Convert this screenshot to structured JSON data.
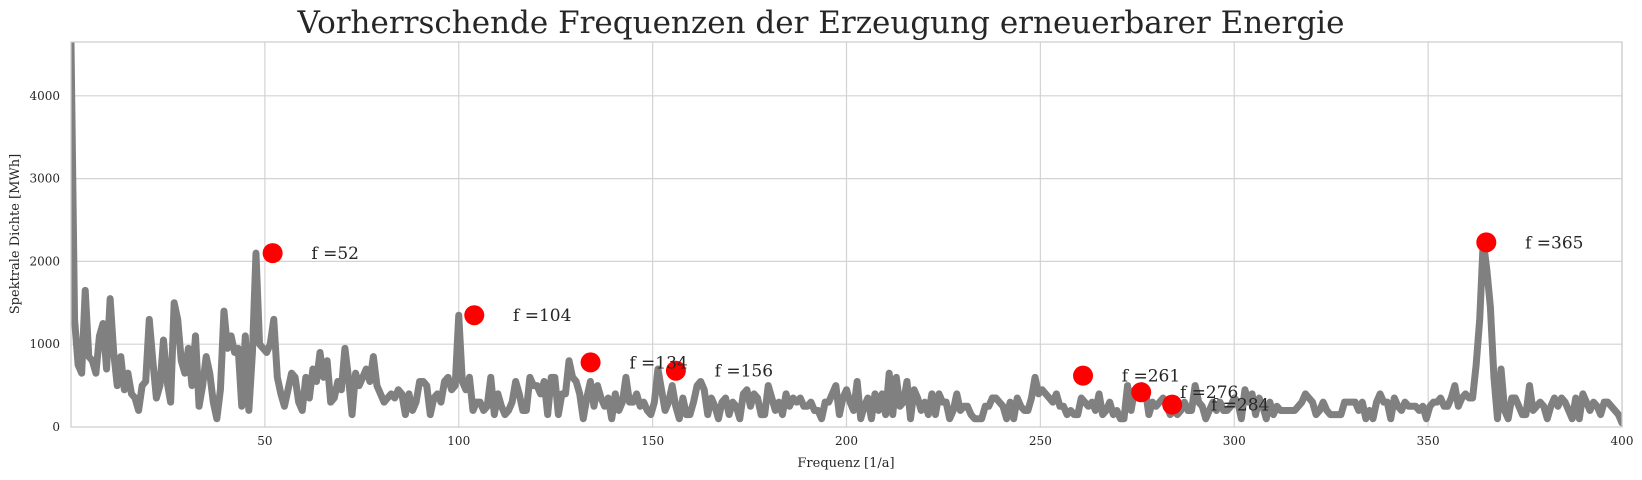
{
  "chart_data": {
    "type": "line",
    "title": "Vorherrschende Frequenzen der Erzeugung erneuerbarer Energie",
    "xlabel": "Frequenz [1/a]",
    "ylabel": "Spektrale Dichte [MWh]",
    "xlim": [
      0,
      400
    ],
    "ylim": [
      0,
      4650
    ],
    "xticks": [
      50,
      100,
      150,
      200,
      250,
      300,
      350,
      400
    ],
    "yticks": [
      0,
      1000,
      2000,
      3000,
      4000
    ],
    "grid": true,
    "line_color": "#808080",
    "peak_color": "#ff0000",
    "series": [
      {
        "values": [
          4650,
          1300,
          750,
          650,
          1650,
          850,
          800,
          650,
          1100,
          1250,
          700,
          1550,
          900,
          500,
          850,
          450,
          650,
          400,
          350,
          200,
          500,
          550,
          1300,
          800,
          350,
          500,
          1050,
          550,
          300,
          1500,
          1300,
          800,
          650,
          950,
          500,
          1100,
          250,
          500,
          850,
          650,
          300,
          100,
          450,
          1400,
          950,
          1100,
          900,
          950,
          250,
          1100,
          200,
          900,
          2100,
          1000,
          950,
          900,
          1000,
          1300,
          600,
          400,
          250,
          450,
          650,
          600,
          300,
          200,
          600,
          350,
          700,
          550,
          900,
          600,
          800,
          300,
          350,
          550,
          450,
          950,
          600,
          150,
          650,
          500,
          600,
          700,
          550,
          850,
          500,
          400,
          300,
          350,
          400,
          350,
          450,
          400,
          150,
          400,
          200,
          300,
          550,
          550,
          500,
          150,
          350,
          400,
          300,
          550,
          600,
          450,
          500,
          1350,
          550,
          450,
          600,
          200,
          300,
          300,
          200,
          250,
          600,
          150,
          400,
          250,
          150,
          200,
          300,
          550,
          400,
          200,
          200,
          600,
          500,
          500,
          400,
          550,
          150,
          600,
          600,
          150,
          400,
          400,
          800,
          600,
          550,
          400,
          100,
          350,
          550,
          250,
          500,
          350,
          250,
          350,
          100,
          400,
          200,
          300,
          600,
          300,
          300,
          400,
          250,
          300,
          200,
          150,
          300,
          700,
          450,
          200,
          300,
          500,
          250,
          100,
          350,
          150,
          150,
          300,
          500,
          550,
          450,
          150,
          350,
          250,
          100,
          300,
          350,
          150,
          300,
          250,
          100,
          400,
          450,
          250,
          400,
          350,
          150,
          150,
          500,
          350,
          200,
          300,
          150,
          400,
          250,
          350,
          300,
          350,
          250,
          250,
          300,
          200,
          200,
          100,
          300,
          300,
          400,
          500,
          150,
          350,
          450,
          300,
          200,
          550,
          100,
          250,
          350,
          100,
          400,
          200,
          400,
          150,
          650,
          150,
          600,
          250,
          300,
          550,
          100,
          450,
          350,
          200,
          300,
          150,
          400,
          150,
          400,
          300,
          300,
          100,
          200,
          400,
          200,
          250,
          250,
          150,
          100,
          100,
          100,
          250,
          250,
          350,
          350,
          300,
          250,
          100,
          300,
          100,
          350,
          250,
          200,
          200,
          350,
          600,
          400,
          450,
          400,
          350,
          300,
          400,
          250,
          250,
          150,
          200,
          150,
          150,
          350,
          300,
          250,
          300,
          200,
          400,
          150,
          200,
          300,
          150,
          200,
          100,
          100,
          500,
          200,
          450,
          350,
          500,
          450,
          150,
          300,
          250,
          300,
          350,
          250,
          150,
          200,
          150,
          200,
          300,
          200,
          200,
          500,
          300,
          250,
          100,
          200,
          300,
          200,
          300,
          200,
          200,
          250,
          350,
          300,
          100,
          450,
          300,
          400,
          150,
          350,
          250,
          100,
          300,
          150,
          250,
          200,
          200,
          200,
          200,
          200,
          250,
          300,
          400,
          350,
          300,
          150,
          200,
          300,
          200,
          150,
          150,
          150,
          150,
          300,
          300,
          300,
          300,
          200,
          300,
          100,
          200,
          100,
          300,
          400,
          300,
          300,
          100,
          350,
          250,
          200,
          300,
          250,
          250,
          250,
          200,
          250,
          100,
          250,
          300,
          300,
          350,
          250,
          250,
          350,
          500,
          250,
          350,
          400,
          350,
          350,
          750,
          1300,
          2250,
          1900,
          1450,
          600,
          100,
          700,
          200,
          100,
          350,
          350,
          250,
          150,
          150,
          500,
          200,
          250,
          300,
          250,
          100,
          250,
          350,
          250,
          350,
          300,
          200,
          100,
          350,
          100,
          400,
          300,
          200,
          300,
          250,
          150,
          300,
          300,
          250,
          200,
          150,
          50
        ]
      }
    ],
    "peaks": [
      {
        "x": 52,
        "y": 2100,
        "label": "f =52"
      },
      {
        "x": 104,
        "y": 1350,
        "label": "f =104"
      },
      {
        "x": 134,
        "y": 780,
        "label": "f =134"
      },
      {
        "x": 156,
        "y": 680,
        "label": "f =156"
      },
      {
        "x": 261,
        "y": 620,
        "label": "f =261"
      },
      {
        "x": 276,
        "y": 420,
        "label": "f =276"
      },
      {
        "x": 284,
        "y": 270,
        "label": "f =284"
      },
      {
        "x": 365,
        "y": 2230,
        "label": "f =365"
      }
    ]
  }
}
